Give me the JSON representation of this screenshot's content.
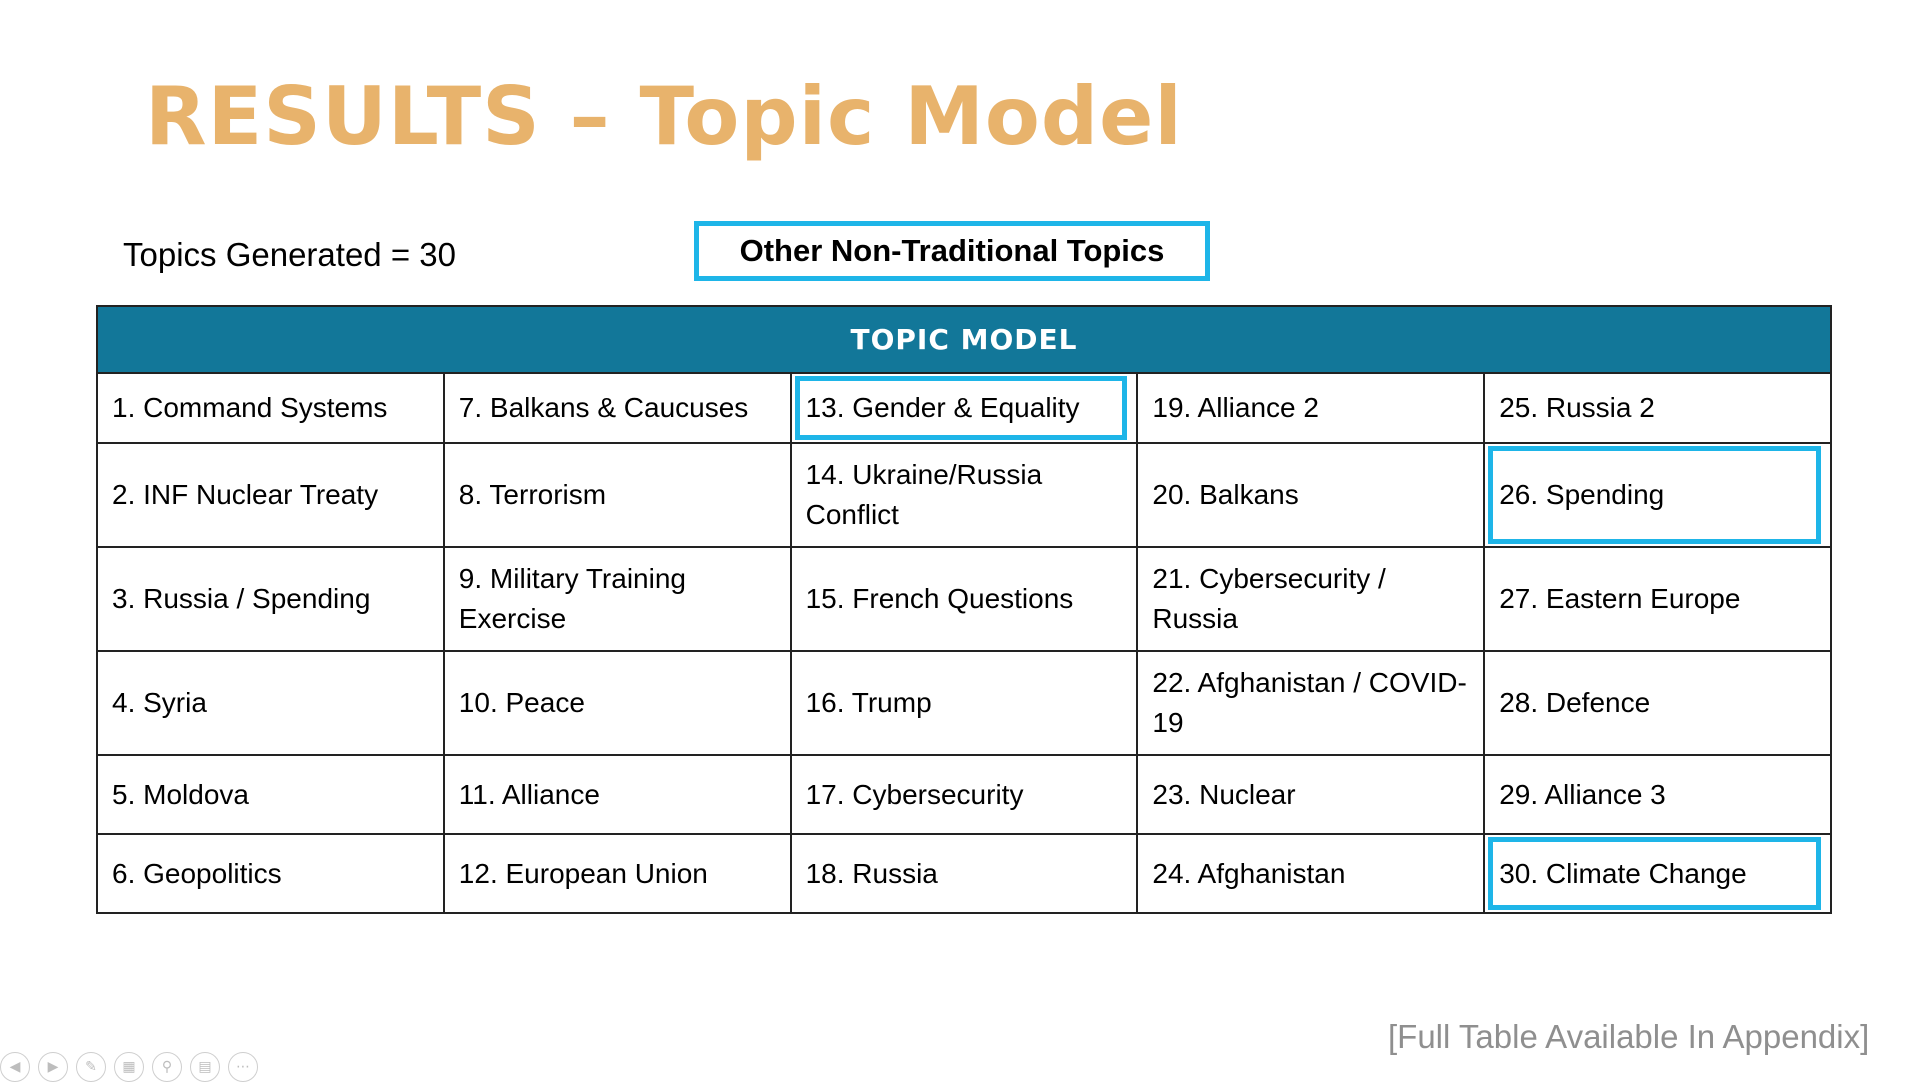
{
  "slide": {
    "title": "RESULTS – Topic Model",
    "topics_generated": "Topics Generated = 30",
    "highlight_label": "Other Non-Traditional Topics",
    "footnote": "[Full Table Available In Appendix]"
  },
  "table": {
    "header": "TOPIC MODEL",
    "rows": [
      [
        "1. Command Systems",
        "7. Balkans & Caucuses",
        "13. Gender & Equality",
        "19. Alliance 2",
        "25. Russia 2"
      ],
      [
        "2. INF Nuclear Treaty",
        "8. Terrorism",
        "14. Ukraine/Russia Conflict",
        "20. Balkans",
        "26. Spending"
      ],
      [
        "3. Russia / Spending",
        "9. Military Training Exercise",
        "15. French Questions",
        "21. Cybersecurity / Russia",
        "27. Eastern Europe"
      ],
      [
        "4. Syria",
        "10. Peace",
        "16. Trump",
        "22. Afghanistan / COVID-19",
        "28. Defence"
      ],
      [
        "5. Moldova",
        "11. Alliance",
        "17. Cybersecurity",
        "23. Nuclear",
        "29. Alliance 3"
      ],
      [
        "6. Geopolitics",
        "12. European Union",
        "18. Russia",
        "24. Afghanistan",
        "30. Climate Change"
      ]
    ]
  },
  "colors": {
    "title": "#e8b36c",
    "header_bg": "#127799",
    "highlight": "#1eb5e8",
    "footnote": "#8f8f8f"
  },
  "presenter_controls": {
    "icons": [
      "previous-icon",
      "next-icon",
      "pen-icon",
      "slides-grid-icon",
      "zoom-icon",
      "subtitles-icon",
      "more-icon"
    ]
  }
}
